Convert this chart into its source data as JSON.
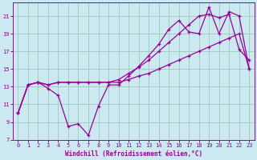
{
  "xlabel": "Windchill (Refroidissement éolien,°C)",
  "bg_color": "#cce8f0",
  "grid_color": "#99ccbb",
  "line_color": "#990099",
  "xlim": [
    -0.5,
    23.5
  ],
  "ylim": [
    7,
    22.5
  ],
  "xticks": [
    0,
    1,
    2,
    3,
    4,
    5,
    6,
    7,
    8,
    9,
    10,
    11,
    12,
    13,
    14,
    15,
    16,
    17,
    18,
    19,
    20,
    21,
    22,
    23
  ],
  "yticks": [
    7,
    9,
    11,
    13,
    15,
    17,
    19,
    21
  ],
  "line1_x": [
    0,
    1,
    2,
    3,
    4,
    5,
    6,
    7,
    8,
    9,
    10,
    11,
    12,
    13,
    14,
    15,
    16,
    17,
    18,
    19,
    20,
    21,
    22,
    23
  ],
  "line1_y": [
    10.0,
    13.2,
    13.5,
    12.8,
    12.0,
    8.5,
    8.8,
    7.5,
    10.8,
    13.2,
    13.2,
    14.2,
    15.3,
    16.5,
    17.8,
    19.5,
    20.5,
    19.2,
    19.0,
    22.0,
    19.0,
    21.5,
    21.0,
    15.0
  ],
  "line2_x": [
    0,
    1,
    2,
    3,
    4,
    5,
    6,
    7,
    8,
    9,
    10,
    11,
    12,
    13,
    14,
    15,
    16,
    17,
    18,
    19,
    20,
    21,
    22,
    23
  ],
  "line2_y": [
    10.0,
    13.2,
    13.5,
    13.2,
    13.5,
    13.5,
    13.5,
    13.5,
    13.5,
    13.5,
    13.8,
    14.5,
    15.2,
    16.0,
    17.0,
    18.0,
    19.0,
    20.0,
    21.0,
    21.2,
    20.8,
    21.2,
    17.2,
    16.0
  ],
  "line3_x": [
    0,
    1,
    2,
    3,
    4,
    5,
    6,
    7,
    8,
    9,
    10,
    11,
    12,
    13,
    14,
    15,
    16,
    17,
    18,
    19,
    20,
    21,
    22,
    23
  ],
  "line3_y": [
    10.0,
    13.2,
    13.5,
    13.2,
    13.5,
    13.5,
    13.5,
    13.5,
    13.5,
    13.5,
    13.5,
    13.8,
    14.2,
    14.5,
    15.0,
    15.5,
    16.0,
    16.5,
    17.0,
    17.5,
    18.0,
    18.5,
    19.0,
    15.0
  ]
}
